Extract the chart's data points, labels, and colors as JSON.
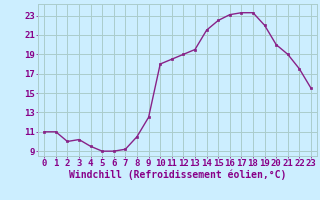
{
  "x": [
    0,
    1,
    2,
    3,
    4,
    5,
    6,
    7,
    8,
    9,
    10,
    11,
    12,
    13,
    14,
    15,
    16,
    17,
    18,
    19,
    20,
    21,
    22,
    23
  ],
  "y": [
    11,
    11,
    10,
    10.2,
    9.5,
    9,
    9,
    9.2,
    10.5,
    12.5,
    18,
    18.5,
    19,
    19.5,
    21.5,
    22.5,
    23.1,
    23.3,
    23.3,
    22,
    20,
    19,
    17.5,
    15.5
  ],
  "line_color": "#882288",
  "marker_color": "#882288",
  "bg_color": "#cceeff",
  "grid_color": "#aacccc",
  "xlabel": "Windchill (Refroidissement éolien,°C)",
  "yticks": [
    9,
    11,
    13,
    15,
    17,
    19,
    21,
    23
  ],
  "ylim": [
    8.5,
    24.2
  ],
  "xlim": [
    -0.5,
    23.5
  ],
  "font_color": "#880088",
  "tick_fontsize": 6.5,
  "xlabel_fontsize": 7
}
